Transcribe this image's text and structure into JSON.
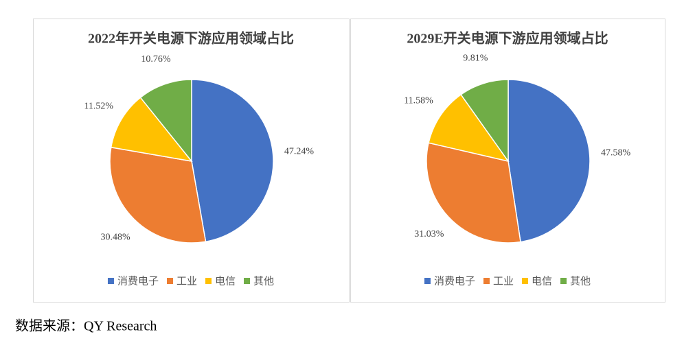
{
  "chart_data": [
    {
      "type": "pie",
      "title": "2022年开关电源下游应用领域占比",
      "categories": [
        "消费电子",
        "工业",
        "电信",
        "其他"
      ],
      "values": [
        47.24,
        30.48,
        11.52,
        10.76
      ],
      "value_labels": [
        "47.24%",
        "30.48%",
        "11.52%",
        "10.76%"
      ],
      "colors": [
        "#4472c4",
        "#ed7d31",
        "#ffc000",
        "#70ad47"
      ],
      "legend": "bottom"
    },
    {
      "type": "pie",
      "title": "2029E开关电源下游应用领域占比",
      "categories": [
        "消费电子",
        "工业",
        "电信",
        "其他"
      ],
      "values": [
        47.58,
        31.03,
        11.58,
        9.81
      ],
      "value_labels": [
        "47.58%",
        "31.03%",
        "11.58%",
        "9.81%"
      ],
      "colors": [
        "#4472c4",
        "#ed7d31",
        "#ffc000",
        "#70ad47"
      ],
      "legend": "bottom"
    }
  ],
  "source": "数据来源：QY Research"
}
